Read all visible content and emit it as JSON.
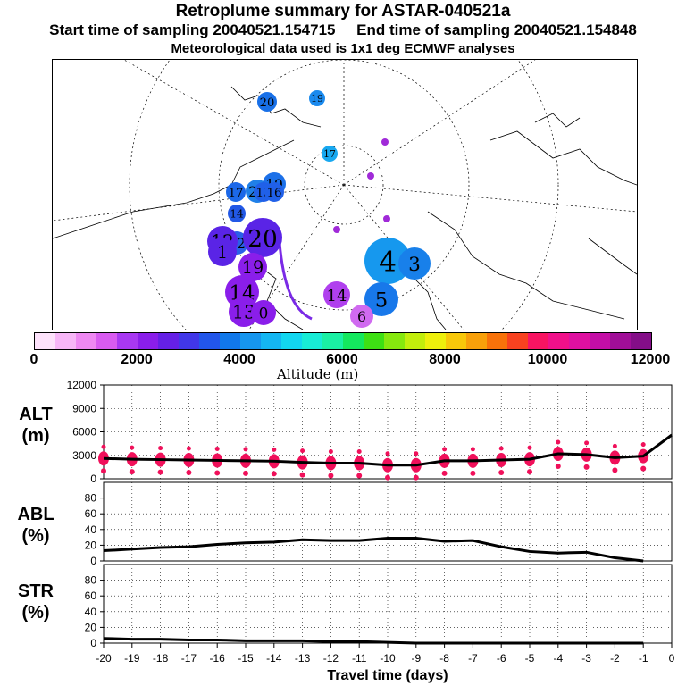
{
  "titles": {
    "main": "Retroplume summary for ASTAR-040521a",
    "start": "Start time of sampling 20040521.154715",
    "end": "End time of sampling 20040521.154848",
    "met": "Meteorological data used is 1x1 deg ECMWF analyses"
  },
  "colorbar": {
    "label": "Altitude (m)",
    "ticks": [
      "0",
      "2000",
      "4000",
      "6000",
      "8000",
      "10000",
      "12000"
    ],
    "colors": [
      "#fde2fb",
      "#f7b6f7",
      "#ee88f2",
      "#d85bf0",
      "#a838f2",
      "#8a1eea",
      "#6520e6",
      "#4137e8",
      "#2256ea",
      "#1178ea",
      "#1696ee",
      "#14b6f2",
      "#12d6f0",
      "#18ecd6",
      "#1af0a4",
      "#14e85e",
      "#3ee014",
      "#86e80e",
      "#c2ee0c",
      "#eef00c",
      "#f8c80a",
      "#f8a00a",
      "#f8720a",
      "#f84220",
      "#f81462",
      "#f0108a",
      "#de10a0",
      "#c40ea6",
      "#a00e98",
      "#840e88"
    ]
  },
  "map": {
    "plumes": [
      {
        "label": "20",
        "color": "#1870e8"
      },
      {
        "label": "19",
        "color": "#1a8aee"
      },
      {
        "label": "17",
        "color": "#18a8f0"
      },
      {
        "label": "20",
        "color": "#2080e8"
      },
      {
        "label": "19",
        "color": "#1c70e8"
      },
      {
        "label": "17",
        "color": "#1c68e8"
      },
      {
        "label": "15",
        "color": "#2060e8"
      },
      {
        "label": "16",
        "color": "#2060e8"
      },
      {
        "label": "14",
        "color": "#2258e6"
      },
      {
        "label": "12",
        "color": "#2a60e8"
      },
      {
        "label": "4",
        "color": "#1698ee"
      },
      {
        "label": "3",
        "color": "#1880ea"
      },
      {
        "label": "12",
        "color": "#5a24e6"
      },
      {
        "label": "20",
        "color": "#5a24e6"
      },
      {
        "label": "1",
        "color": "#5a24e6"
      },
      {
        "label": "19",
        "color": "#8a1eea"
      },
      {
        "label": "14",
        "color": "#8a1eea"
      },
      {
        "label": "13",
        "color": "#8a1eea"
      },
      {
        "label": "0",
        "color": "#8a1eea"
      },
      {
        "label": "14",
        "color": "#b040ee"
      },
      {
        "label": "5",
        "color": "#1878ea"
      },
      {
        "label": "6",
        "color": "#d06af0"
      }
    ]
  },
  "chart_data": [
    {
      "type": "scatter",
      "panel": "ALT",
      "ylabel": "ALT",
      "yunit": "(m)",
      "xlim": [
        -20,
        0
      ],
      "ylim": [
        0,
        12000
      ],
      "yticks": [
        "12000",
        "9000",
        "6000",
        "3000",
        "0"
      ],
      "x": [
        -20,
        -19,
        -18,
        -17,
        -16,
        -15,
        -14,
        -13,
        -12,
        -11,
        -10,
        -9,
        -8,
        -7,
        -6,
        -5,
        -4,
        -3,
        -2,
        -1,
        0
      ],
      "mean_altitude": [
        2600,
        2500,
        2450,
        2400,
        2350,
        2300,
        2250,
        2100,
        2000,
        2000,
        1750,
        1750,
        2300,
        2300,
        2400,
        2500,
        3200,
        3100,
        2700,
        2900,
        5600
      ],
      "marker_color": "#f0105a"
    },
    {
      "type": "line",
      "panel": "ABL",
      "ylabel": "ABL",
      "yunit": "(%)",
      "xlim": [
        -20,
        0
      ],
      "ylim": [
        0,
        100
      ],
      "yticks": [
        "80",
        "60",
        "40",
        "20",
        "0"
      ],
      "x": [
        -20,
        -19,
        -18,
        -17,
        -16,
        -15,
        -14,
        -13,
        -12,
        -11,
        -10,
        -9,
        -8,
        -7,
        -6,
        -5,
        -4,
        -3,
        -2,
        -1
      ],
      "values": [
        13,
        15,
        17,
        18,
        21,
        23,
        24,
        27,
        26,
        26,
        29,
        29,
        25,
        26,
        18,
        12,
        10,
        11,
        4,
        0
      ]
    },
    {
      "type": "line",
      "panel": "STR",
      "ylabel": "STR",
      "yunit": "(%)",
      "xlim": [
        -20,
        0
      ],
      "ylim": [
        0,
        100
      ],
      "yticks": [
        "80",
        "60",
        "40",
        "20",
        "0"
      ],
      "x": [
        -20,
        -19,
        -18,
        -17,
        -16,
        -15,
        -14,
        -13,
        -12,
        -11,
        -10,
        -9,
        -8,
        -7,
        -6,
        -5,
        -4,
        -3,
        -2,
        -1
      ],
      "values": [
        6,
        5,
        5,
        4,
        4,
        3,
        3,
        3,
        2,
        2,
        1,
        0,
        0,
        0,
        0,
        0,
        0,
        0,
        0,
        0
      ]
    }
  ],
  "xaxis": {
    "ticks": [
      "-20",
      "-19",
      "-18",
      "-17",
      "-16",
      "-15",
      "-14",
      "-13",
      "-12",
      "-11",
      "-10",
      "-9",
      "-8",
      "-7",
      "-6",
      "-5",
      "-4",
      "-3",
      "-2",
      "-1",
      "0"
    ],
    "title": "Travel time (days)"
  }
}
